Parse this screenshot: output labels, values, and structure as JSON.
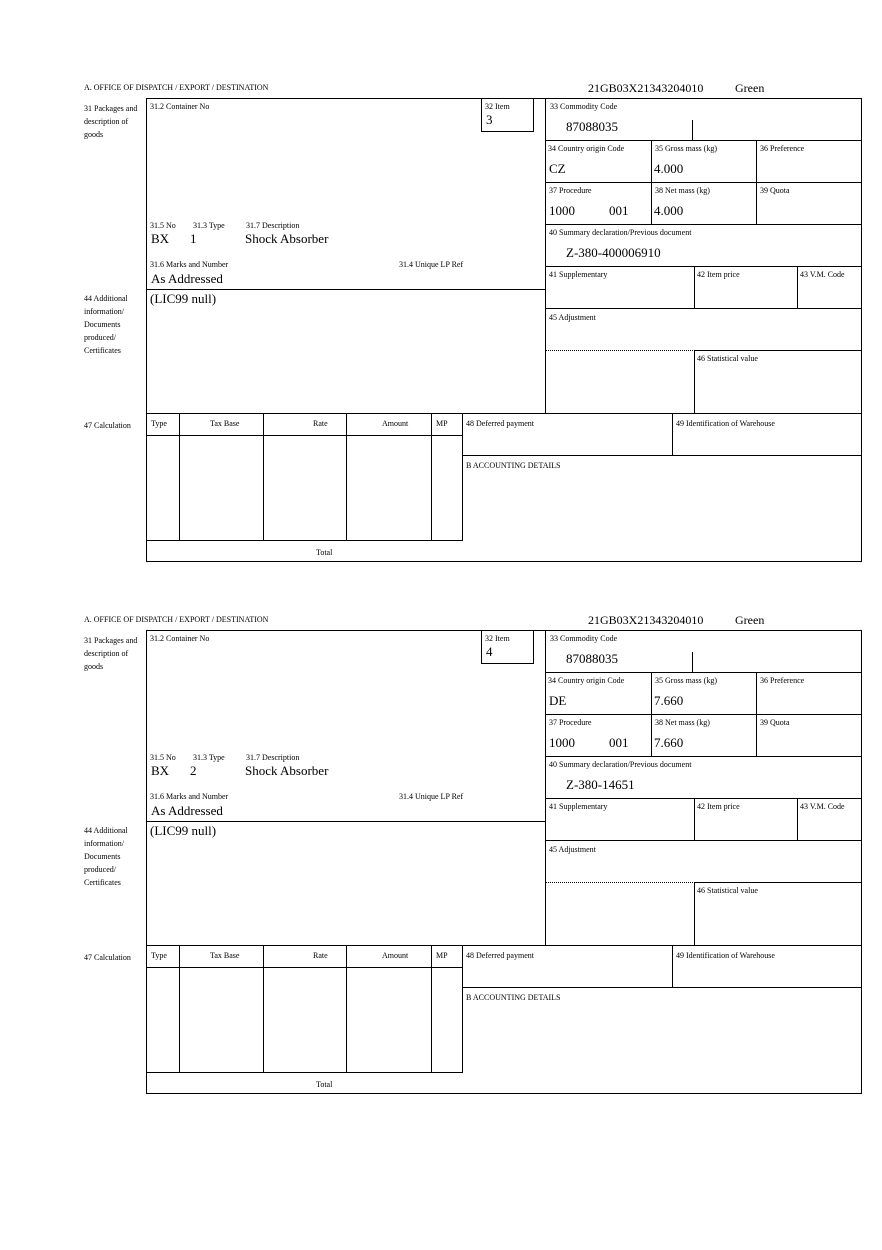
{
  "labels": {
    "office": "A.  OFFICE OF DISPATCH / EXPORT / DESTINATION",
    "b31": "31 Packages and description of goods",
    "b31_2": "31.2 Container No",
    "b32": "32 Item",
    "b31_5": "31.5 No",
    "b31_3": "31.3 Type",
    "b31_7": "31.7 Description",
    "b31_6": "31.6 Marks and Number",
    "b31_4": "31.4 Unique LP Ref",
    "b44": "44 Additional information/ Documents produced/ Certificates",
    "b33": "33 Commodity Code",
    "b34": "34 Country origin Code",
    "b35": "35 Gross mass (kg)",
    "b36": "36 Preference",
    "b37": "37 Procedure",
    "b38": "38 Net mass (kg)",
    "b39": "39 Quota",
    "b40": "40 Summary declaration/Previous document",
    "b41": "41 Supplementary",
    "b42": "42 Item price",
    "b43": "43 V.M. Code",
    "b45": "45 Adjustment",
    "b46": "46 Statistical value",
    "b47": "47 Calculation",
    "col_type": "Type",
    "col_taxbase": "Tax Base",
    "col_rate": "Rate",
    "col_amount": "Amount",
    "col_mp": "MP",
    "total": "Total",
    "b48": "48 Deferred payment",
    "b49": "49 Identification of Warehouse",
    "accounting": "B ACCOUNTING DETAILS"
  },
  "forms": [
    {
      "reference": "21GB03X21343204010",
      "route": "Green",
      "item": "3",
      "package_kind": "BX",
      "package_count": "1",
      "description": "Shock Absorber",
      "marks": "As Addressed",
      "additional_info": "(LIC99 null)",
      "commodity_code": "87088035",
      "country_origin": "CZ",
      "gross_mass": "4.000",
      "procedure": "1000",
      "procedure_add": "001",
      "net_mass": "4.000",
      "previous_document": "Z-380-400006910"
    },
    {
      "reference": "21GB03X21343204010",
      "route": "Green",
      "item": "4",
      "package_kind": "BX",
      "package_count": "2",
      "description": "Shock Absorber",
      "marks": "As Addressed",
      "additional_info": "(LIC99 null)",
      "commodity_code": "87088035",
      "country_origin": "DE",
      "gross_mass": "7.660",
      "procedure": "1000",
      "procedure_add": "001",
      "net_mass": "7.660",
      "previous_document": "Z-380-14651"
    }
  ]
}
